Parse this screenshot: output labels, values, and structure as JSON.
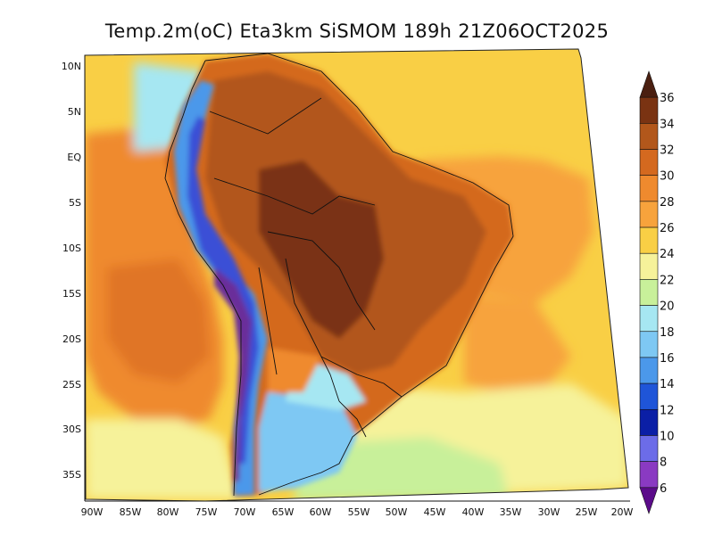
{
  "title": "Temp.2m(oC) Eta3km SiSMOM 189h 21Z06OCT2025",
  "map": {
    "variable": "2 m temperature",
    "units": "oC",
    "lat_ticks": [
      "10N",
      "5N",
      "EQ",
      "5S",
      "10S",
      "15S",
      "20S",
      "25S",
      "30S",
      "35S"
    ],
    "lon_ticks": [
      "90W",
      "85W",
      "80W",
      "75W",
      "70W",
      "65W",
      "60W",
      "55W",
      "50W",
      "45W",
      "40W",
      "35W",
      "30W",
      "25W",
      "20W"
    ],
    "colors": {
      "ocean_warm": "#f7a33c",
      "ocean_mild": "#f9cf45",
      "ocean_cool": "#f6f29a",
      "amazon_hot": "#b2571b",
      "land_hot": "#d4691f",
      "andes_cold": "#3a4fd6",
      "andes_coldest": "#6a2f9a",
      "south_cool": "#7ec8f3",
      "south_mild": "#c8f09a"
    }
  },
  "colorbar": {
    "labels": [
      "36",
      "34",
      "32",
      "30",
      "28",
      "26",
      "24",
      "22",
      "20",
      "18",
      "16",
      "14",
      "12",
      "10",
      "8",
      "6"
    ],
    "colors": [
      "#4a1f10",
      "#7a3312",
      "#b2571b",
      "#d4691f",
      "#ef8a2e",
      "#f7a33c",
      "#f9cf45",
      "#f6f29a",
      "#c8f09a",
      "#a6e7f2",
      "#7ec8f3",
      "#4b98ea",
      "#1f55d8",
      "#0b1fa6",
      "#6c6ce8",
      "#8a3ac2",
      "#5b0b8a"
    ]
  }
}
